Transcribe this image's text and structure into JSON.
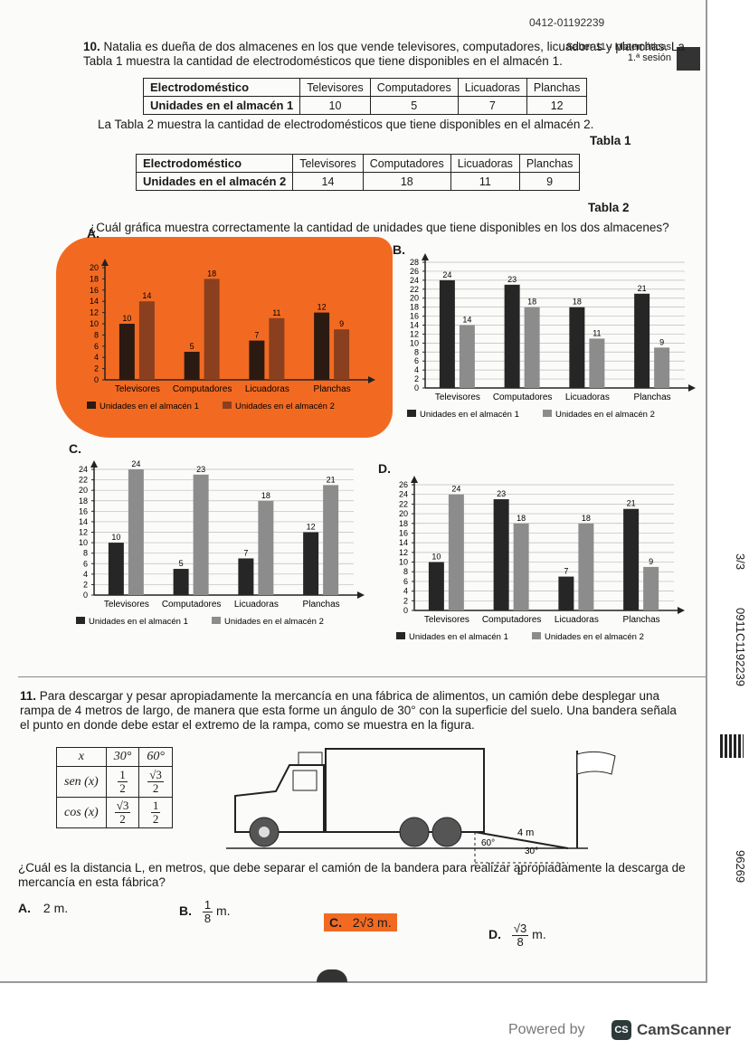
{
  "header": {
    "code_top": "0412-01192239",
    "subject": "Saber 11 - Matemáticas",
    "session": "1.ª sesión"
  },
  "side": {
    "page": "3/3",
    "code": "0911C1192239",
    "number": "96269"
  },
  "q10": {
    "number": "10.",
    "intro": "Natalia es dueña de dos almacenes en los que vende televisores, computadores, licuadoras y planchas. La Tabla 1 muestra la cantidad de electrodomésticos que tiene disponibles en el almacén 1.",
    "table1": {
      "rows": [
        [
          "Electrodoméstico",
          "Televisores",
          "Computadores",
          "Licuadoras",
          "Planchas"
        ],
        [
          "Unidades en el almacén 1",
          "10",
          "5",
          "7",
          "12"
        ]
      ],
      "caption": "Tabla 1"
    },
    "between": "La Tabla 2 muestra la cantidad de electrodomésticos que tiene disponibles en el almacén 2.",
    "table2": {
      "rows": [
        [
          "Electrodoméstico",
          "Televisores",
          "Computadores",
          "Licuadoras",
          "Planchas"
        ],
        [
          "Unidades en el almacén 2",
          "14",
          "18",
          "11",
          "9"
        ]
      ],
      "caption": "Tabla 2"
    },
    "question": "¿Cuál gráfica muestra correctamente la cantidad de unidades que tiene disponibles en los dos almacenes?",
    "options": [
      {
        "letter": "A.",
        "chart": {
          "type": "bar",
          "categories": [
            "Televisores",
            "Computadores",
            "Licuadoras",
            "Planchas"
          ],
          "series": [
            {
              "name": "Unidades en el almacén 1",
              "color": "#2b1a12",
              "values": [
                10,
                5,
                7,
                12
              ]
            },
            {
              "name": "Unidades en el almacén 2",
              "color": "#8a3f1e",
              "values": [
                14,
                18,
                11,
                9
              ]
            }
          ],
          "ylim": [
            0,
            20
          ],
          "yticks": [
            0,
            2,
            4,
            6,
            8,
            10,
            12,
            14,
            16,
            18,
            20
          ],
          "grid": false
        }
      },
      {
        "letter": "B.",
        "chart": {
          "type": "bar",
          "categories": [
            "Televisores",
            "Computadores",
            "Licuadoras",
            "Planchas"
          ],
          "series": [
            {
              "name": "Unidades en el almacén 1",
              "color": "#262626",
              "values": [
                24,
                23,
                18,
                21
              ]
            },
            {
              "name": "Unidades en el almacén 2",
              "color": "#8c8c8c",
              "values": [
                14,
                18,
                11,
                9
              ]
            }
          ],
          "ylim": [
            0,
            28
          ],
          "yticks": [
            0,
            2,
            4,
            6,
            8,
            10,
            12,
            14,
            16,
            18,
            20,
            22,
            24,
            26,
            28
          ],
          "grid": true
        }
      },
      {
        "letter": "C.",
        "chart": {
          "type": "bar",
          "categories": [
            "Televisores",
            "Computadores",
            "Licuadoras",
            "Planchas"
          ],
          "series": [
            {
              "name": "Unidades en el almacén 1",
              "color": "#262626",
              "values": [
                10,
                5,
                7,
                12
              ]
            },
            {
              "name": "Unidades en el almacén 2",
              "color": "#8c8c8c",
              "values": [
                24,
                23,
                18,
                21
              ]
            }
          ],
          "ylim": [
            0,
            24
          ],
          "yticks": [
            0,
            2,
            4,
            6,
            8,
            10,
            12,
            14,
            16,
            18,
            20,
            22,
            24
          ],
          "grid": true
        }
      },
      {
        "letter": "D.",
        "chart": {
          "type": "bar",
          "categories": [
            "Televisores",
            "Computadores",
            "Licuadoras",
            "Planchas"
          ],
          "series": [
            {
              "name": "Unidades en el almacén 1",
              "color": "#262626",
              "values": [
                10,
                23,
                7,
                21
              ]
            },
            {
              "name": "Unidades en el almacén 2",
              "color": "#8c8c8c",
              "values": [
                24,
                18,
                18,
                9
              ]
            }
          ],
          "ylim": [
            0,
            26
          ],
          "yticks": [
            0,
            2,
            4,
            6,
            8,
            10,
            12,
            14,
            16,
            18,
            20,
            22,
            24,
            26
          ],
          "grid": true
        }
      }
    ]
  },
  "q11": {
    "number": "11.",
    "text": "Para descargar y pesar apropiadamente la mercancía en una fábrica de alimentos, un camión debe desplegar una rampa de 4 metros de largo, de manera que esta forme un ángulo de 30° con la superficie del suelo. Una bandera señala el punto en donde debe estar el extremo de la rampa, como se muestra en la figura.",
    "trig_table": {
      "header": [
        "x",
        "30°",
        "60°"
      ],
      "rows": [
        {
          "label": "sen (x)",
          "cells": [
            {
              "num": "1",
              "den": "2"
            },
            {
              "num": "√3",
              "den": "2"
            }
          ]
        },
        {
          "label": "cos (x)",
          "cells": [
            {
              "num": "√3",
              "den": "2"
            },
            {
              "num": "1",
              "den": "2"
            }
          ]
        }
      ]
    },
    "figure": {
      "ramp": "4 m",
      "angle_truck": "60°",
      "angle_ground": "30°",
      "distance": "L"
    },
    "question": "¿Cuál es la distancia L, en metros, que debe separar el camión de la bandera para realizar apropiadamente la descarga de mercancía en esta fábrica?",
    "options": [
      {
        "letter": "A.",
        "text": "2 m."
      },
      {
        "letter": "B.",
        "num": "1",
        "den": "8",
        "unit": "m."
      },
      {
        "letter": "C.",
        "text": "2√3 m."
      },
      {
        "letter": "D.",
        "num": "√3",
        "den": "8",
        "unit": "m."
      }
    ]
  },
  "footer": {
    "powered": "Powered by",
    "logo": "CS",
    "brand": "CamScanner"
  }
}
